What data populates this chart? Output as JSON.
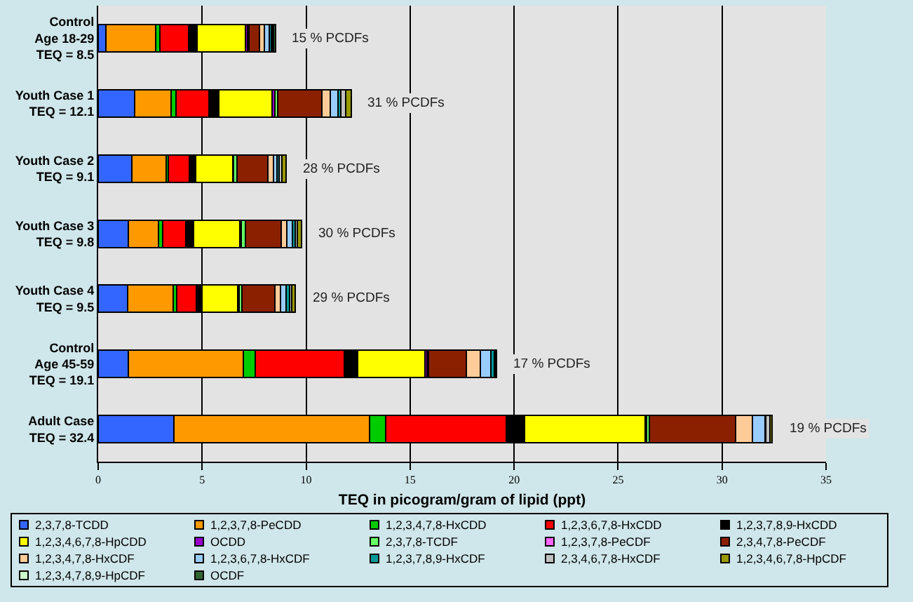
{
  "chart_data": {
    "type": "bar",
    "orientation": "horizontal",
    "stacked": true,
    "categories": [
      "Control\nAge 18-29\nTEQ = 8.5",
      "Youth Case 1\nTEQ = 12.1",
      "Youth Case 2\nTEQ = 9.1",
      "Youth Case 3\nTEQ = 9.8",
      "Youth Case 4\nTEQ = 9.5",
      "Control\nAge 45-59\nTEQ = 19.1",
      "Adult Case\nTEQ = 32.4"
    ],
    "xlabel": "TEQ in picogram/gram of lipid (ppt)",
    "xlim": [
      0,
      35
    ],
    "xticks": [
      0,
      5,
      10,
      15,
      20,
      25,
      30,
      35
    ],
    "grid": "x",
    "legend": "bottom",
    "series": [
      {
        "name": "2,3,7,8-TCDD",
        "color": "#3366ff",
        "values": [
          0.36,
          1.76,
          1.62,
          1.46,
          1.4,
          1.46,
          3.64
        ]
      },
      {
        "name": "1,2,3,7,8-PeCDD",
        "color": "#ff9900",
        "values": [
          2.41,
          1.76,
          1.66,
          1.45,
          2.22,
          5.52,
          9.4
        ]
      },
      {
        "name": "1,2,3,4,7,8-HxCDD",
        "color": "#00cc00",
        "values": [
          0.2,
          0.21,
          0.1,
          0.18,
          0.17,
          0.57,
          0.8
        ]
      },
      {
        "name": "1,2,3,6,7,8-HxCDD",
        "color": "#ff0000",
        "values": [
          1.38,
          1.61,
          1.01,
          1.14,
          0.92,
          4.28,
          5.8
        ]
      },
      {
        "name": "1,2,3,7,8,9-HxCDD",
        "color": "#000000",
        "values": [
          0.41,
          0.47,
          0.31,
          0.36,
          0.29,
          0.65,
          0.87
        ]
      },
      {
        "name": "1,2,3,4,6,7,8-HpCDD",
        "color": "#ffff00",
        "values": [
          2.32,
          2.56,
          1.76,
          2.23,
          1.72,
          3.24,
          5.8
        ]
      },
      {
        "name": "OCDD",
        "color": "#9900cc",
        "values": [
          0.1,
          0.12,
          0.05,
          0.06,
          0.05,
          0.1,
          0.05
        ]
      },
      {
        "name": "2,3,7,8-TCDF",
        "color": "#66ff66",
        "values": [
          0.06,
          0.14,
          0.15,
          0.2,
          0.15,
          0.05,
          0.15
        ]
      },
      {
        "name": "1,2,3,7,8-PeCDF",
        "color": "#ff66ff",
        "values": [
          null,
          null,
          null,
          null,
          null,
          null,
          null
        ]
      },
      {
        "name": "2,3,4,7,8-PeCDF",
        "color": "#8b2000",
        "values": [
          0.53,
          2.11,
          1.5,
          1.72,
          1.56,
          1.83,
          4.15
        ]
      },
      {
        "name": "1,2,3,4,7,8-HxCDF",
        "color": "#ffcc99",
        "values": [
          0.22,
          0.43,
          0.27,
          0.28,
          0.3,
          0.69,
          0.8
        ]
      },
      {
        "name": "1,2,3,6,7,8-HxCDF",
        "color": "#99ccff",
        "values": [
          0.24,
          0.36,
          0.17,
          0.26,
          0.26,
          0.5,
          0.6
        ]
      },
      {
        "name": "1,2,3,7,8,9-HxCDF",
        "color": "#009999",
        "values": [
          0.1,
          0.14,
          0.1,
          0.15,
          0.15,
          0.15,
          0.05
        ]
      },
      {
        "name": "2,3,4,6,7,8-HxCDF",
        "color": "#c0c0c0",
        "values": [
          0.05,
          0.24,
          0.15,
          0.1,
          0.1,
          0.05,
          0.2
        ]
      },
      {
        "name": "1,2,3,4,6,7,8-HpCDF",
        "color": "#999900",
        "values": [
          0.05,
          0.25,
          0.19,
          0.2,
          0.2,
          null,
          0.1
        ]
      },
      {
        "name": "1,2,3,4,7,8,9-HpCDF",
        "color": "#ccffcc",
        "values": [
          null,
          null,
          null,
          null,
          null,
          null,
          null
        ]
      },
      {
        "name": "OCDF",
        "color": "#336633",
        "values": [
          0.1,
          null,
          null,
          null,
          null,
          0.05,
          null
        ]
      }
    ],
    "annotations": [
      "15 % PCDFs",
      "31 % PCDFs",
      "28 % PCDFs",
      "30 % PCDFs",
      "29 % PCDFs",
      "17 % PCDFs",
      "19 % PCDFs"
    ]
  }
}
